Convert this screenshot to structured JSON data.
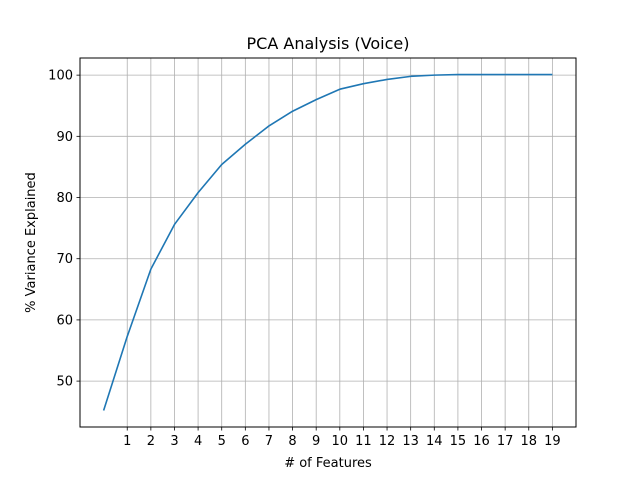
{
  "chart_data": {
    "type": "line",
    "title": "PCA Analysis (Voice)",
    "xlabel": "# of Features",
    "ylabel": "% Variance Explained",
    "xlim": [
      -1,
      20
    ],
    "ylim": [
      42.5,
      102.8
    ],
    "x_ticks": [
      1,
      2,
      3,
      4,
      5,
      6,
      7,
      8,
      9,
      10,
      11,
      12,
      13,
      14,
      15,
      16,
      17,
      18,
      19
    ],
    "y_ticks": [
      50,
      60,
      70,
      80,
      90,
      100
    ],
    "grid": true,
    "series": [
      {
        "color": "#1f77b4",
        "x": [
          0,
          1,
          2,
          3,
          4,
          5,
          6,
          7,
          8,
          9,
          10,
          11,
          12,
          13,
          14,
          15,
          16,
          17,
          18,
          19
        ],
        "values": [
          45.2,
          57.3,
          68.3,
          75.6,
          80.8,
          85.4,
          88.7,
          91.7,
          94.1,
          96.0,
          97.7,
          98.6,
          99.3,
          99.8,
          100.0,
          100.1,
          100.1,
          100.1,
          100.1,
          100.1
        ]
      }
    ]
  }
}
